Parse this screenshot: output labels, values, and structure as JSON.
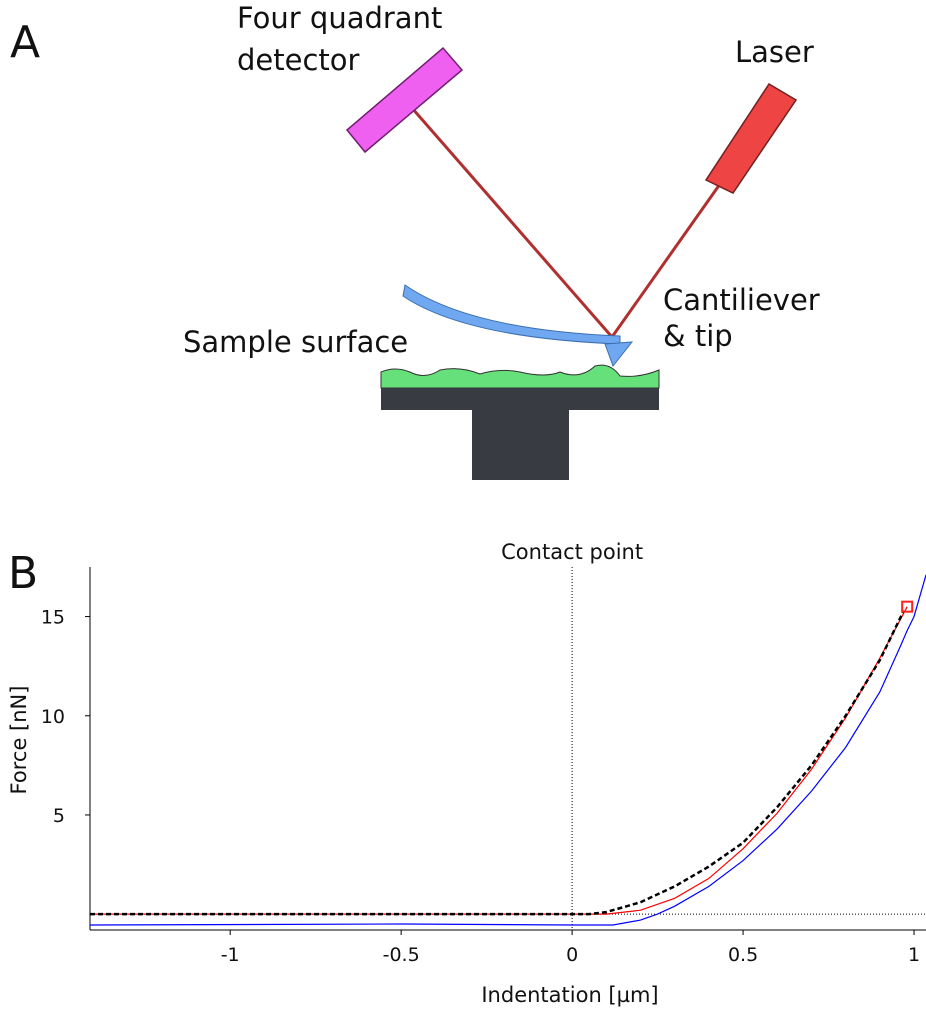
{
  "diagram": {
    "panel_label": "A",
    "labels": {
      "detector": [
        "Four quadrant",
        "detector"
      ],
      "laser": "Laser",
      "cantilever": [
        "Cantiliever",
        "& tip"
      ],
      "sample": "Sample surface"
    }
  },
  "chart_data": {
    "type": "line",
    "panel_label": "B",
    "x_label": "Indentation [µm]",
    "y_label": "Force [nN]",
    "xlim": [
      -1.41,
      1.035
    ],
    "ylim": [
      -0.8,
      17.5
    ],
    "xticks": [
      -1,
      -0.5,
      0,
      0.5,
      1
    ],
    "yticks": [
      5,
      10,
      15
    ],
    "annotations": [
      {
        "text": "Contact point",
        "x": 0
      }
    ],
    "hline": 0,
    "marker": {
      "x": 0.98,
      "y": 15.5,
      "color": "#ff2020"
    },
    "series": [
      {
        "color": "#0000ff",
        "dash": false,
        "x": [
          -1.41,
          -0.5,
          0,
          0.12,
          0.2,
          0.25,
          0.3,
          0.4,
          0.5,
          0.6,
          0.7,
          0.8,
          0.9,
          0.96,
          0.98,
          1.0,
          1.035
        ],
        "values": [
          -0.55,
          -0.5,
          -0.55,
          -0.55,
          -0.3,
          0,
          0.4,
          1.4,
          2.7,
          4.3,
          6.2,
          8.4,
          11.2,
          13.5,
          14.3,
          15.0,
          17.1
        ]
      },
      {
        "color": "#ff0000",
        "dash": false,
        "x": [
          -1.41,
          0.1,
          0.2,
          0.3,
          0.4,
          0.5,
          0.6,
          0.7,
          0.8,
          0.9,
          0.98
        ],
        "values": [
          0,
          0,
          0.2,
          0.8,
          1.8,
          3.3,
          5.1,
          7.3,
          9.9,
          12.9,
          15.5
        ]
      },
      {
        "color": "#000000",
        "dash": true,
        "x": [
          -1.41,
          0.05,
          0.1,
          0.2,
          0.3,
          0.4,
          0.5,
          0.6,
          0.7,
          0.8,
          0.9,
          0.97
        ],
        "values": [
          0,
          0,
          0.1,
          0.6,
          1.4,
          2.4,
          3.6,
          5.4,
          7.5,
          10.0,
          12.8,
          15.3
        ]
      }
    ]
  }
}
